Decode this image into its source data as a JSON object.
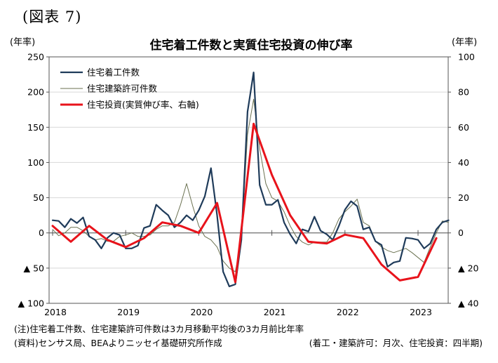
{
  "figure_label": "(図表 7)",
  "notes": {
    "note1": "(注)住宅着工件数、住宅建築許可件数は3カ月移動平均後の3カ月前比年率",
    "source": "(資料)センサス局、BEAよりニッセイ基礎研究所作成",
    "frequency": "(着工・建築許可：月次、住宅投資：四半期)"
  },
  "chart_data": {
    "type": "line",
    "title": "住宅着工件数と実質住宅投資の伸び率",
    "left_unit": "(年率)",
    "right_unit": "(年率)",
    "left_axis": {
      "ylim": [
        -100,
        250
      ],
      "ticks": [
        250,
        200,
        150,
        100,
        50,
        0,
        -50,
        -100
      ],
      "tick_labels": [
        "250",
        "200",
        "150",
        "100",
        "50",
        "0",
        "▲ 50",
        "▲ 100"
      ]
    },
    "right_axis": {
      "ylim": [
        -40,
        100
      ],
      "ticks": [
        100,
        80,
        60,
        40,
        20,
        0,
        -20,
        -40
      ],
      "tick_labels": [
        "100",
        "80",
        "60",
        "40",
        "20",
        "0",
        "▲ 20",
        "▲ 40"
      ]
    },
    "x_axis": {
      "ticks": [
        2018,
        2019,
        2020,
        2021,
        2022,
        2023
      ],
      "tick_labels": [
        "2018",
        "2019",
        "2020",
        "2021",
        "2022",
        "2023"
      ],
      "range": [
        2018.0,
        2023.5
      ]
    },
    "grid": "horizontal",
    "legend_position": "top-left",
    "series": [
      {
        "name": "住宅着工件数",
        "axis": "left",
        "color": "#1f3b5a",
        "width": 2.2,
        "x": [
          2018.0,
          2018.083,
          2018.167,
          2018.25,
          2018.333,
          2018.417,
          2018.5,
          2018.583,
          2018.667,
          2018.75,
          2018.833,
          2018.917,
          2019.0,
          2019.083,
          2019.167,
          2019.25,
          2019.333,
          2019.417,
          2019.5,
          2019.583,
          2019.667,
          2019.75,
          2019.833,
          2019.917,
          2020.0,
          2020.083,
          2020.167,
          2020.25,
          2020.333,
          2020.417,
          2020.5,
          2020.583,
          2020.667,
          2020.75,
          2020.833,
          2020.917,
          2021.0,
          2021.083,
          2021.167,
          2021.25,
          2021.333,
          2021.417,
          2021.5,
          2021.583,
          2021.667,
          2021.75,
          2021.833,
          2021.917,
          2022.0,
          2022.083,
          2022.167,
          2022.25,
          2022.333,
          2022.417,
          2022.5,
          2022.583,
          2022.667,
          2022.75,
          2022.833,
          2022.917,
          2023.0,
          2023.083,
          2023.167,
          2023.25,
          2023.333,
          2023.417
        ],
        "values": [
          18,
          17,
          8,
          20,
          14,
          22,
          -5,
          -10,
          -22,
          -7,
          0,
          -3,
          -22,
          -22,
          -18,
          7,
          10,
          40,
          32,
          25,
          8,
          15,
          25,
          18,
          32,
          52,
          92,
          25,
          -55,
          -76,
          -73,
          -10,
          172,
          228,
          68,
          40,
          40,
          47,
          15,
          -2,
          -15,
          5,
          2,
          23,
          3,
          -2,
          -10,
          10,
          33,
          45,
          38,
          5,
          8,
          -12,
          -17,
          -48,
          -42,
          -40,
          -7,
          -8,
          -10,
          -22,
          -15,
          5,
          15,
          18
        ]
      },
      {
        "name": "住宅建築許可件数",
        "axis": "left",
        "color": "#6b7251",
        "width": 1.0,
        "x": [
          2018.0,
          2018.083,
          2018.167,
          2018.25,
          2018.333,
          2018.417,
          2018.5,
          2018.583,
          2018.667,
          2018.75,
          2018.833,
          2018.917,
          2019.0,
          2019.083,
          2019.167,
          2019.25,
          2019.333,
          2019.417,
          2019.5,
          2019.583,
          2019.667,
          2019.75,
          2019.833,
          2019.917,
          2020.0,
          2020.083,
          2020.167,
          2020.25,
          2020.333,
          2020.417,
          2020.5,
          2020.583,
          2020.667,
          2020.75,
          2020.833,
          2020.917,
          2021.0,
          2021.083,
          2021.167,
          2021.25,
          2021.333,
          2021.417,
          2021.5,
          2021.583,
          2021.667,
          2021.75,
          2021.833,
          2021.917,
          2022.0,
          2022.083,
          2022.167,
          2022.25,
          2022.333,
          2022.417,
          2022.5,
          2022.583,
          2022.667,
          2022.75,
          2022.833,
          2022.917,
          2023.0,
          2023.083,
          2023.167,
          2023.25,
          2023.333,
          2023.417
        ],
        "values": [
          5,
          -4,
          0,
          8,
          8,
          3,
          -5,
          -10,
          -8,
          -12,
          -12,
          -5,
          -3,
          0,
          -5,
          -5,
          -3,
          5,
          10,
          10,
          15,
          40,
          70,
          38,
          10,
          -5,
          -10,
          -20,
          -40,
          -50,
          -55,
          -10,
          140,
          190,
          120,
          70,
          50,
          45,
          30,
          10,
          -5,
          -13,
          -17,
          -13,
          -13,
          -13,
          0,
          20,
          30,
          38,
          48,
          15,
          10,
          -12,
          -20,
          -25,
          -28,
          -25,
          -22,
          -28,
          -35,
          -42,
          -20,
          0,
          17,
          15
        ]
      },
      {
        "name": "住宅投資(実質伸び率、右軸)",
        "axis": "right",
        "color": "#e8131b",
        "width": 3.0,
        "x": [
          2018.0,
          2018.25,
          2018.5,
          2018.75,
          2019.0,
          2019.25,
          2019.5,
          2019.75,
          2020.0,
          2020.25,
          2020.5,
          2020.75,
          2021.0,
          2021.25,
          2021.5,
          2021.75,
          2022.0,
          2022.25,
          2022.5,
          2022.75,
          2023.0,
          2023.25
        ],
        "values": [
          4,
          -5,
          4,
          -4,
          -8,
          -3,
          6,
          4,
          0,
          17,
          -28,
          62,
          33,
          10,
          -5,
          -6,
          -1,
          -3,
          -18,
          -27,
          -25,
          -3
        ]
      }
    ]
  }
}
